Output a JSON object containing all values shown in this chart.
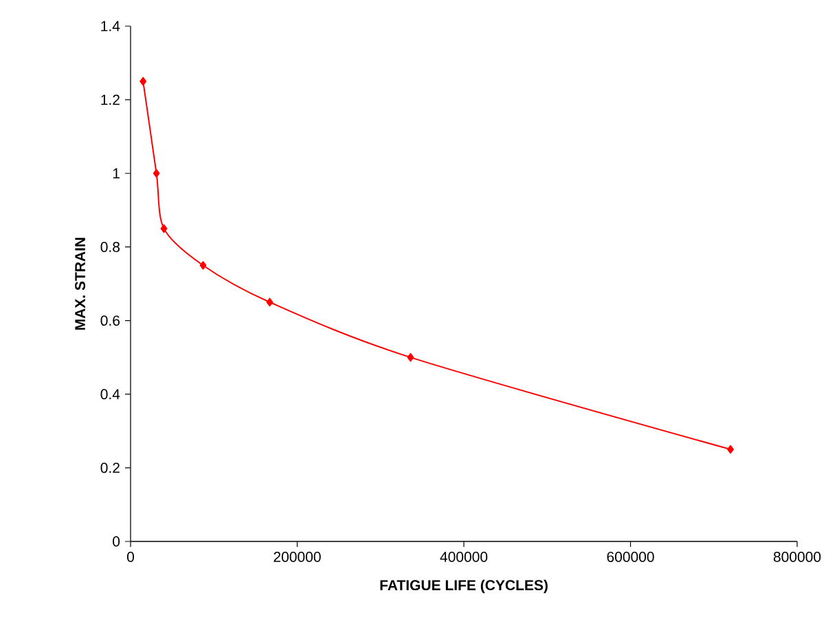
{
  "chart_data": {
    "type": "line",
    "xlabel": "FATIGUE LIFE (CYCLES)",
    "ylabel": "MAX. STRAIN",
    "x": [
      15000,
      31000,
      40000,
      87000,
      167000,
      336000,
      720000
    ],
    "series": [
      {
        "color": "#ff0000",
        "values": [
          1.25,
          1.0,
          0.85,
          0.75,
          0.65,
          0.5,
          0.25
        ]
      }
    ],
    "xlim": [
      0,
      800000
    ],
    "xticks": [
      0,
      200000,
      400000,
      600000,
      800000
    ],
    "ylim": [
      0,
      1.4
    ],
    "yticks": [
      0,
      0.2,
      0.4,
      0.6,
      0.8,
      1,
      1.2,
      1.4
    ],
    "grid": false,
    "marker": "diamond",
    "line_style": "solid"
  }
}
